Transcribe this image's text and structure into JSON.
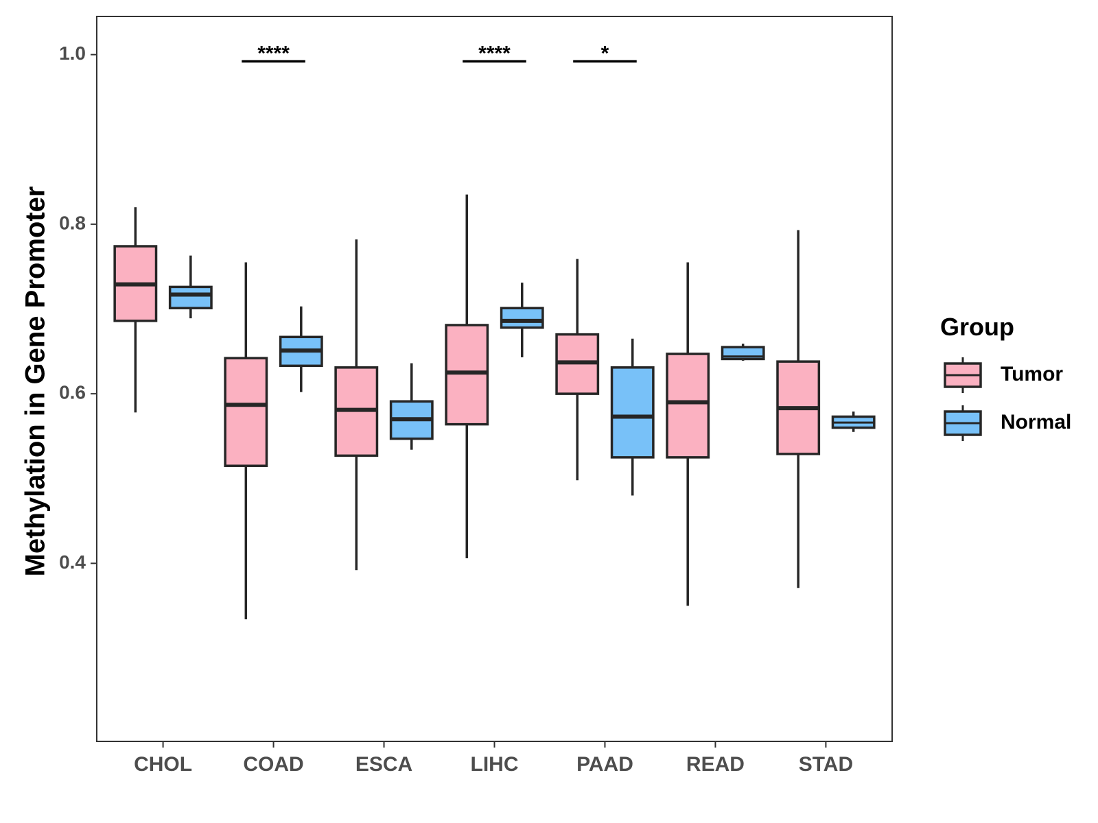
{
  "chart_data": {
    "type": "boxplot",
    "title": "",
    "xlabel": "",
    "ylabel": "Methylation in Gene Promoter",
    "ylim": [
      0.19,
      1.045
    ],
    "yticks": [
      0.4,
      0.6,
      0.8,
      1.0
    ],
    "ytick_labels": [
      "0.4",
      "0.6",
      "0.8",
      "1.0"
    ],
    "categories": [
      "CHOL",
      "COAD",
      "ESCA",
      "LIHC",
      "PAAD",
      "READ",
      "STAD"
    ],
    "legend": {
      "title": "Group",
      "position": "right",
      "entries": [
        "Tumor",
        "Normal"
      ]
    },
    "colors": {
      "Tumor": "#fbb1c1",
      "Normal": "#78c1f8",
      "outline": "#262626"
    },
    "series": [
      {
        "name": "Tumor",
        "boxes": [
          {
            "category": "CHOL",
            "whisker_low": 0.578,
            "q1": 0.686,
            "median": 0.729,
            "q3": 0.774,
            "whisker_high": 0.82
          },
          {
            "category": "COAD",
            "whisker_low": 0.334,
            "q1": 0.515,
            "median": 0.587,
            "q3": 0.642,
            "whisker_high": 0.755
          },
          {
            "category": "ESCA",
            "whisker_low": 0.392,
            "q1": 0.527,
            "median": 0.581,
            "q3": 0.631,
            "whisker_high": 0.782
          },
          {
            "category": "LIHC",
            "whisker_low": 0.406,
            "q1": 0.564,
            "median": 0.625,
            "q3": 0.681,
            "whisker_high": 0.835
          },
          {
            "category": "PAAD",
            "whisker_low": 0.498,
            "q1": 0.6,
            "median": 0.637,
            "q3": 0.67,
            "whisker_high": 0.759
          },
          {
            "category": "READ",
            "whisker_low": 0.35,
            "q1": 0.525,
            "median": 0.59,
            "q3": 0.647,
            "whisker_high": 0.755
          },
          {
            "category": "STAD",
            "whisker_low": 0.371,
            "q1": 0.529,
            "median": 0.583,
            "q3": 0.638,
            "whisker_high": 0.793
          }
        ]
      },
      {
        "name": "Normal",
        "boxes": [
          {
            "category": "CHOL",
            "whisker_low": 0.689,
            "q1": 0.701,
            "median": 0.717,
            "q3": 0.726,
            "whisker_high": 0.763
          },
          {
            "category": "COAD",
            "whisker_low": 0.602,
            "q1": 0.633,
            "median": 0.651,
            "q3": 0.667,
            "whisker_high": 0.703
          },
          {
            "category": "ESCA",
            "whisker_low": 0.534,
            "q1": 0.547,
            "median": 0.57,
            "q3": 0.591,
            "whisker_high": 0.636
          },
          {
            "category": "LIHC",
            "whisker_low": 0.643,
            "q1": 0.678,
            "median": 0.686,
            "q3": 0.701,
            "whisker_high": 0.731
          },
          {
            "category": "PAAD",
            "whisker_low": 0.48,
            "q1": 0.525,
            "median": 0.573,
            "q3": 0.631,
            "whisker_high": 0.665
          },
          {
            "category": "READ",
            "whisker_low": 0.639,
            "q1": 0.641,
            "median": 0.644,
            "q3": 0.655,
            "whisker_high": 0.659
          },
          {
            "category": "STAD",
            "whisker_low": 0.555,
            "q1": 0.56,
            "median": 0.566,
            "q3": 0.573,
            "whisker_high": 0.579
          }
        ]
      }
    ],
    "annotations": [
      {
        "category": "COAD",
        "label": "****",
        "y": 0.992
      },
      {
        "category": "LIHC",
        "label": "****",
        "y": 0.992
      },
      {
        "category": "PAAD",
        "label": "*",
        "y": 0.992
      }
    ]
  }
}
